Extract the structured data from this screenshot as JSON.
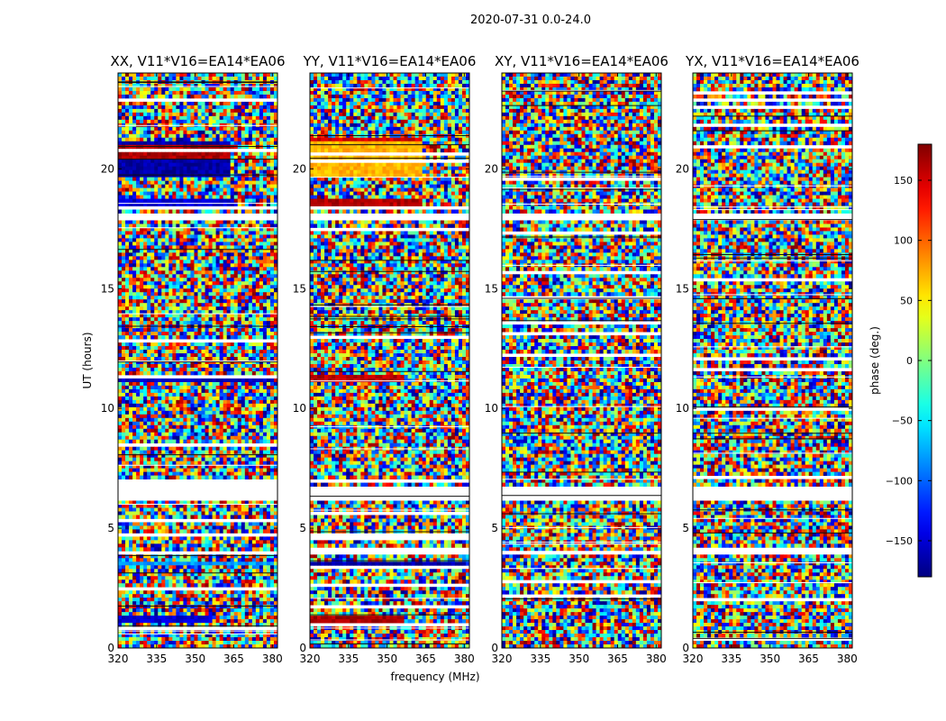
{
  "chart_data": {
    "type": "heatmap",
    "suptitle": "2020-07-31 0.0-24.0",
    "panels": [
      {
        "title": "XX, V11*V16=EA14*EA06",
        "product": "XX",
        "coherent_blocks": [
          {
            "t0": 1.05,
            "t1": 1.35,
            "phase": -150,
            "f1": 356
          },
          {
            "t0": 3.45,
            "t1": 3.6,
            "phase": -80,
            "f1": 381
          },
          {
            "t0": 11.15,
            "t1": 11.45,
            "phase": -160,
            "f1": 381
          },
          {
            "t0": 18.3,
            "t1": 18.7,
            "phase": -150,
            "f1": 365
          },
          {
            "t0": 19.7,
            "t1": 21.1,
            "phase": -165,
            "f1": 363
          },
          {
            "t0": 20.35,
            "t1": 21.05,
            "phase": 165,
            "f1": 363
          }
        ]
      },
      {
        "title": "YY, V11*V16=EA14*EA06",
        "product": "YY",
        "coherent_blocks": [
          {
            "t0": 1.05,
            "t1": 1.35,
            "phase": 165,
            "f1": 356
          },
          {
            "t0": 3.45,
            "t1": 3.6,
            "phase": -165,
            "f1": 381
          },
          {
            "t0": 11.15,
            "t1": 11.45,
            "phase": 160,
            "f1": 356
          },
          {
            "t0": 18.3,
            "t1": 18.7,
            "phase": 160,
            "f1": 363
          },
          {
            "t0": 19.7,
            "t1": 21.1,
            "phase": 70,
            "f1": 363
          },
          {
            "t0": 21.1,
            "t1": 21.3,
            "phase": 150,
            "f1": 363
          }
        ]
      },
      {
        "title": "XY, V11*V16=EA14*EA06",
        "product": "XY",
        "coherent_blocks": []
      },
      {
        "title": "YX, V11*V16=EA14*EA06",
        "product": "YX",
        "coherent_blocks": []
      }
    ],
    "flagged_ranges": [
      [
        6.1,
        6.7
      ],
      [
        17.8,
        18.1
      ],
      [
        16.3,
        16.4
      ],
      [
        3.9,
        4.0
      ],
      [
        7.9,
        8.0
      ]
    ],
    "xlabel": "frequency (MHz)",
    "ylabel": "UT (hours)",
    "xlim": [
      320,
      382
    ],
    "ylim": [
      0,
      24
    ],
    "xticks": [
      320,
      335,
      350,
      365,
      380
    ],
    "yticks": [
      0,
      5,
      10,
      15,
      20
    ],
    "colorbar": {
      "label": "phase (deg.)",
      "range": [
        -180,
        180
      ],
      "ticks": [
        -150,
        -100,
        -50,
        0,
        50,
        100,
        150
      ],
      "colormap": "jet"
    }
  }
}
